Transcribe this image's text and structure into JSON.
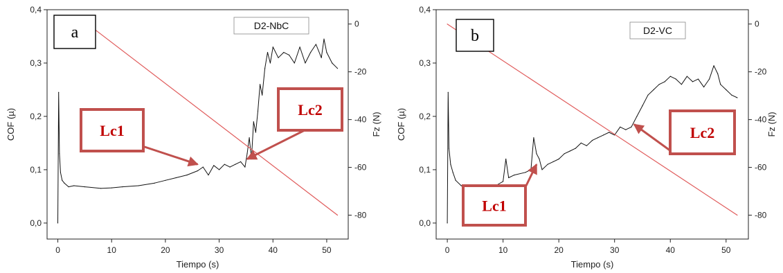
{
  "chart_data": [
    {
      "type": "line",
      "panel_letter": "a",
      "sample_label": "D2-NbC",
      "xlabel": "Tiempo (s)",
      "ylabel": "COF (µ)",
      "y2label": "Fz (N)",
      "xlim": [
        -2,
        54
      ],
      "ylim": [
        -0.03,
        0.4
      ],
      "y2lim": [
        -90,
        6
      ],
      "xticks": [
        0,
        10,
        20,
        30,
        40,
        50
      ],
      "yticks": [
        0.0,
        0.1,
        0.2,
        0.3,
        0.4
      ],
      "ytick_labels": [
        "0,0",
        "0,1",
        "0,2",
        "0,3",
        "0,4"
      ],
      "y2ticks": [
        -80,
        -60,
        -40,
        -20,
        0
      ],
      "y2tick_labels": [
        "-80",
        "-60",
        "-40",
        "-20",
        "0"
      ],
      "colors": {
        "cof": "#111111",
        "fz": "#e05a5a",
        "annotation": "#c0504d",
        "annotation_text": "#c00000"
      },
      "series": [
        {
          "axis": "left",
          "x": [
            0,
            0.15,
            0.3,
            0.5,
            0.8,
            1.2,
            2,
            3,
            5,
            8,
            10,
            12,
            15,
            18,
            20,
            22,
            24,
            26,
            27,
            28,
            29,
            30,
            31,
            32,
            33,
            34,
            34.8,
            35.2,
            35.6,
            36,
            36.4,
            36.8,
            37.2,
            37.6,
            38,
            38.5,
            39,
            39.5,
            40,
            41,
            42,
            43,
            44,
            45,
            46,
            47,
            48,
            49,
            49.5,
            50,
            51,
            52
          ],
          "y": [
            0.0,
            0.245,
            0.13,
            0.095,
            0.08,
            0.075,
            0.068,
            0.07,
            0.068,
            0.065,
            0.066,
            0.068,
            0.07,
            0.075,
            0.08,
            0.085,
            0.09,
            0.098,
            0.105,
            0.09,
            0.108,
            0.1,
            0.11,
            0.105,
            0.11,
            0.115,
            0.105,
            0.13,
            0.16,
            0.12,
            0.19,
            0.17,
            0.21,
            0.26,
            0.24,
            0.29,
            0.32,
            0.3,
            0.33,
            0.31,
            0.32,
            0.315,
            0.3,
            0.33,
            0.3,
            0.32,
            0.335,
            0.31,
            0.345,
            0.32,
            0.3,
            0.29
          ]
        },
        {
          "axis": "right",
          "x": [
            7,
            52
          ],
          "y": [
            -2.5,
            -80
          ]
        }
      ],
      "annotations": [
        {
          "text": "Lc1",
          "x": 26,
          "y": 0.11
        },
        {
          "text": "Lc2",
          "x": 35.2,
          "y": 0.12
        }
      ]
    },
    {
      "type": "line",
      "panel_letter": "b",
      "sample_label": "D2-VC",
      "xlabel": "Tiempo (s)",
      "ylabel": "COF (µ)",
      "y2label": "Fz (N)",
      "xlim": [
        -2,
        54
      ],
      "ylim": [
        -0.03,
        0.4
      ],
      "y2lim": [
        -90,
        6
      ],
      "xticks": [
        0,
        10,
        20,
        30,
        40,
        50
      ],
      "yticks": [
        0.0,
        0.1,
        0.2,
        0.3,
        0.4
      ],
      "ytick_labels": [
        "0,0",
        "0,1",
        "0,2",
        "0,3",
        "0,4"
      ],
      "y2ticks": [
        -80,
        -60,
        -40,
        -20,
        0
      ],
      "y2tick_labels": [
        "-80",
        "-60",
        "-40",
        "-20",
        "0"
      ],
      "colors": {
        "cof": "#111111",
        "fz": "#e05a5a",
        "annotation": "#c0504d",
        "annotation_text": "#c00000"
      },
      "series": [
        {
          "axis": "left",
          "x": [
            0,
            0.15,
            0.3,
            0.6,
            1,
            1.5,
            2.5,
            3.5,
            5,
            7,
            9,
            10,
            10.5,
            11,
            12,
            14,
            15,
            15.5,
            16,
            16.5,
            17,
            18,
            19,
            20,
            21,
            22,
            23,
            24,
            25,
            26,
            27,
            28,
            29,
            30,
            31,
            32,
            33,
            34,
            35,
            36,
            37,
            38,
            39,
            40,
            41,
            42,
            43,
            44,
            45,
            46,
            47,
            47.8,
            48.5,
            49,
            50,
            51,
            52
          ],
          "y": [
            0.0,
            0.245,
            0.14,
            0.11,
            0.095,
            0.08,
            0.07,
            0.065,
            0.07,
            0.068,
            0.072,
            0.078,
            0.12,
            0.085,
            0.09,
            0.095,
            0.1,
            0.16,
            0.13,
            0.12,
            0.1,
            0.11,
            0.115,
            0.12,
            0.13,
            0.135,
            0.14,
            0.15,
            0.145,
            0.155,
            0.16,
            0.165,
            0.17,
            0.165,
            0.18,
            0.175,
            0.18,
            0.2,
            0.22,
            0.24,
            0.25,
            0.26,
            0.265,
            0.275,
            0.27,
            0.26,
            0.275,
            0.265,
            0.27,
            0.255,
            0.27,
            0.295,
            0.28,
            0.26,
            0.25,
            0.24,
            0.235
          ]
        },
        {
          "axis": "right",
          "x": [
            0,
            52
          ],
          "y": [
            0,
            -80
          ]
        }
      ],
      "annotations": [
        {
          "text": "Lc1",
          "x": 16,
          "y": 0.11
        },
        {
          "text": "Lc2",
          "x": 33.5,
          "y": 0.185
        }
      ]
    }
  ]
}
